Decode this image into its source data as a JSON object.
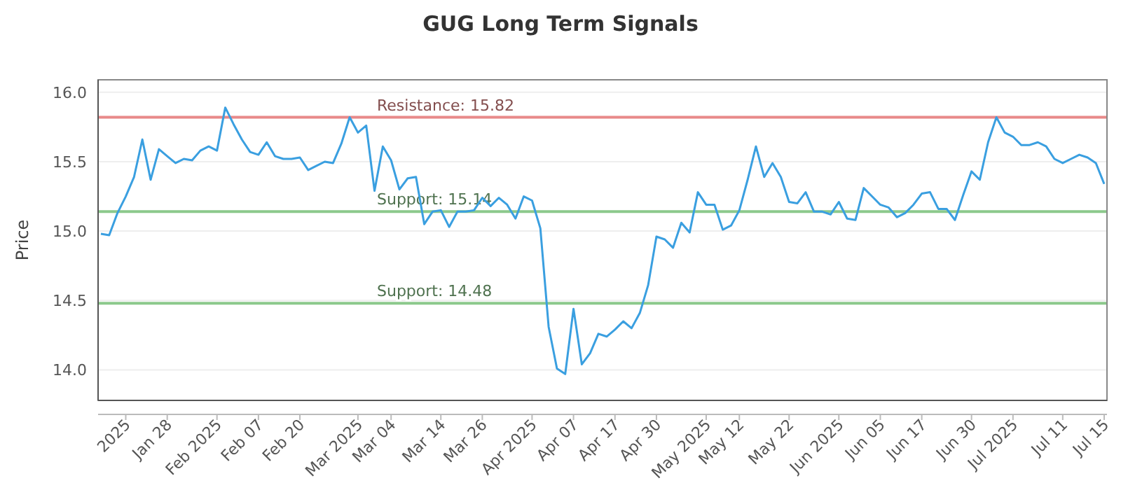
{
  "chart_data": {
    "type": "line",
    "title": "GUG Long Term Signals",
    "ylabel": "Price",
    "categories": [
      null,
      null,
      null,
      "2025",
      null,
      null,
      null,
      null,
      "Jan 28",
      null,
      null,
      null,
      null,
      null,
      "Feb 2025",
      null,
      null,
      null,
      null,
      "Feb 07",
      null,
      null,
      null,
      null,
      "Feb 20",
      null,
      null,
      null,
      null,
      null,
      null,
      "Mar 2025",
      null,
      null,
      null,
      "Mar 04",
      null,
      null,
      null,
      null,
      null,
      "Mar 14",
      null,
      null,
      null,
      null,
      "Mar 26",
      null,
      null,
      null,
      null,
      null,
      "Apr 2025",
      null,
      null,
      null,
      null,
      "Apr 07",
      null,
      null,
      null,
      null,
      "Apr 17",
      null,
      null,
      null,
      null,
      "Apr 30",
      null,
      null,
      null,
      null,
      null,
      "May 2025",
      null,
      null,
      null,
      "May 12",
      null,
      null,
      null,
      null,
      null,
      "May 22",
      null,
      null,
      null,
      null,
      null,
      "Jun 2025",
      null,
      null,
      null,
      null,
      "Jun 05",
      null,
      null,
      null,
      null,
      "Jun 17",
      null,
      null,
      null,
      null,
      null,
      "Jun 30",
      null,
      null,
      null,
      null,
      "Jul 2025",
      null,
      null,
      null,
      null,
      null,
      "Jul 11",
      null,
      null,
      null,
      null,
      "Jul 15"
    ],
    "series": [
      {
        "color": "#3a9fe0",
        "values": [
          14.98,
          14.97,
          15.13,
          15.25,
          15.39,
          15.66,
          15.37,
          15.59,
          15.54,
          15.49,
          15.52,
          15.51,
          15.58,
          15.61,
          15.58,
          15.89,
          15.77,
          15.66,
          15.57,
          15.55,
          15.64,
          15.54,
          15.52,
          15.52,
          15.53,
          15.44,
          15.47,
          15.5,
          15.49,
          15.63,
          15.82,
          15.71,
          15.76,
          15.29,
          15.61,
          15.51,
          15.3,
          15.38,
          15.39,
          15.05,
          15.14,
          15.15,
          15.03,
          15.14,
          15.14,
          15.15,
          15.24,
          15.18,
          15.24,
          15.19,
          15.09,
          15.25,
          15.22,
          15.02,
          14.31,
          14.01,
          13.97,
          14.44,
          14.04,
          14.12,
          14.26,
          14.24,
          14.29,
          14.35,
          14.3,
          14.41,
          14.61,
          14.96,
          14.94,
          14.88,
          15.06,
          14.99,
          15.28,
          15.19,
          15.19,
          15.01,
          15.04,
          15.15,
          15.37,
          15.61,
          15.39,
          15.49,
          15.39,
          15.21,
          15.2,
          15.28,
          15.14,
          15.14,
          15.12,
          15.21,
          15.09,
          15.08,
          15.31,
          15.25,
          15.19,
          15.17,
          15.1,
          15.13,
          15.19,
          15.27,
          15.28,
          15.16,
          15.16,
          15.08,
          15.26,
          15.43,
          15.37,
          15.64,
          15.82,
          15.71,
          15.68,
          15.62,
          15.62,
          15.64,
          15.61,
          15.52,
          15.49,
          15.52,
          15.55,
          15.53,
          15.49,
          15.34
        ]
      }
    ],
    "ylim": [
      13.78,
      16.09
    ],
    "yticks": [
      {
        "value": 14,
        "label": "14.0"
      },
      14.5,
      {
        "value": 15,
        "label": "15.0"
      },
      15.5,
      {
        "value": 16,
        "label": "16.0"
      }
    ],
    "grid": "y",
    "marker": "none",
    "line_style": "solid",
    "ref_lines": [
      {
        "axis": "y",
        "value": 15.82,
        "label": "Resistance: 15.82",
        "color": "#e88a8a"
      },
      {
        "axis": "y",
        "value": 15.14,
        "label": "Support: 15.14",
        "color": "#8cc98c"
      },
      {
        "axis": "y",
        "value": 14.48,
        "label": "Support: 14.48",
        "color": "#8cc98c"
      }
    ]
  }
}
